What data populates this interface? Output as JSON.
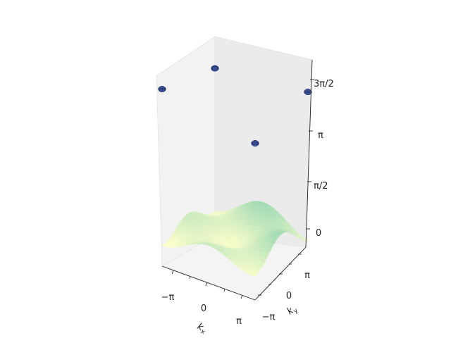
{
  "chart_data": {
    "type": "surface3d",
    "title": "",
    "axes": {
      "x": {
        "label": "k_x",
        "label_text": "k",
        "label_sub": "x",
        "ticks": [
          "−π",
          "0",
          "π"
        ],
        "range": [
          -3.1416,
          3.1416
        ]
      },
      "y": {
        "label": "k_y",
        "label_text": "k",
        "label_sub": "y",
        "ticks": [
          "−π",
          "0",
          "π"
        ],
        "range": [
          -3.1416,
          3.1416
        ]
      },
      "z": {
        "ticks": [
          "0",
          "π/2",
          "π",
          "3π/2"
        ],
        "tick_values": [
          0,
          1.5708,
          3.1416,
          4.7124
        ],
        "range": [
          -0.3,
          5.2
        ]
      }
    },
    "grid": false,
    "colormap": "YlGnBu",
    "surface": {
      "description": "surface low near origin with a ridge toward the back corner",
      "z_range": [
        0.3,
        1.2
      ]
    },
    "markers": [
      {
        "kx": -3.1416,
        "ky": -3.1416,
        "z": 4.9
      },
      {
        "kx": 3.1416,
        "ky": -3.1416,
        "z": 4.3
      },
      {
        "kx": -3.1416,
        "ky": 3.1416,
        "z": 4.6
      },
      {
        "kx": 3.1416,
        "ky": 3.1416,
        "z": 4.9
      }
    ],
    "marker_color": "#1a2a6c"
  }
}
